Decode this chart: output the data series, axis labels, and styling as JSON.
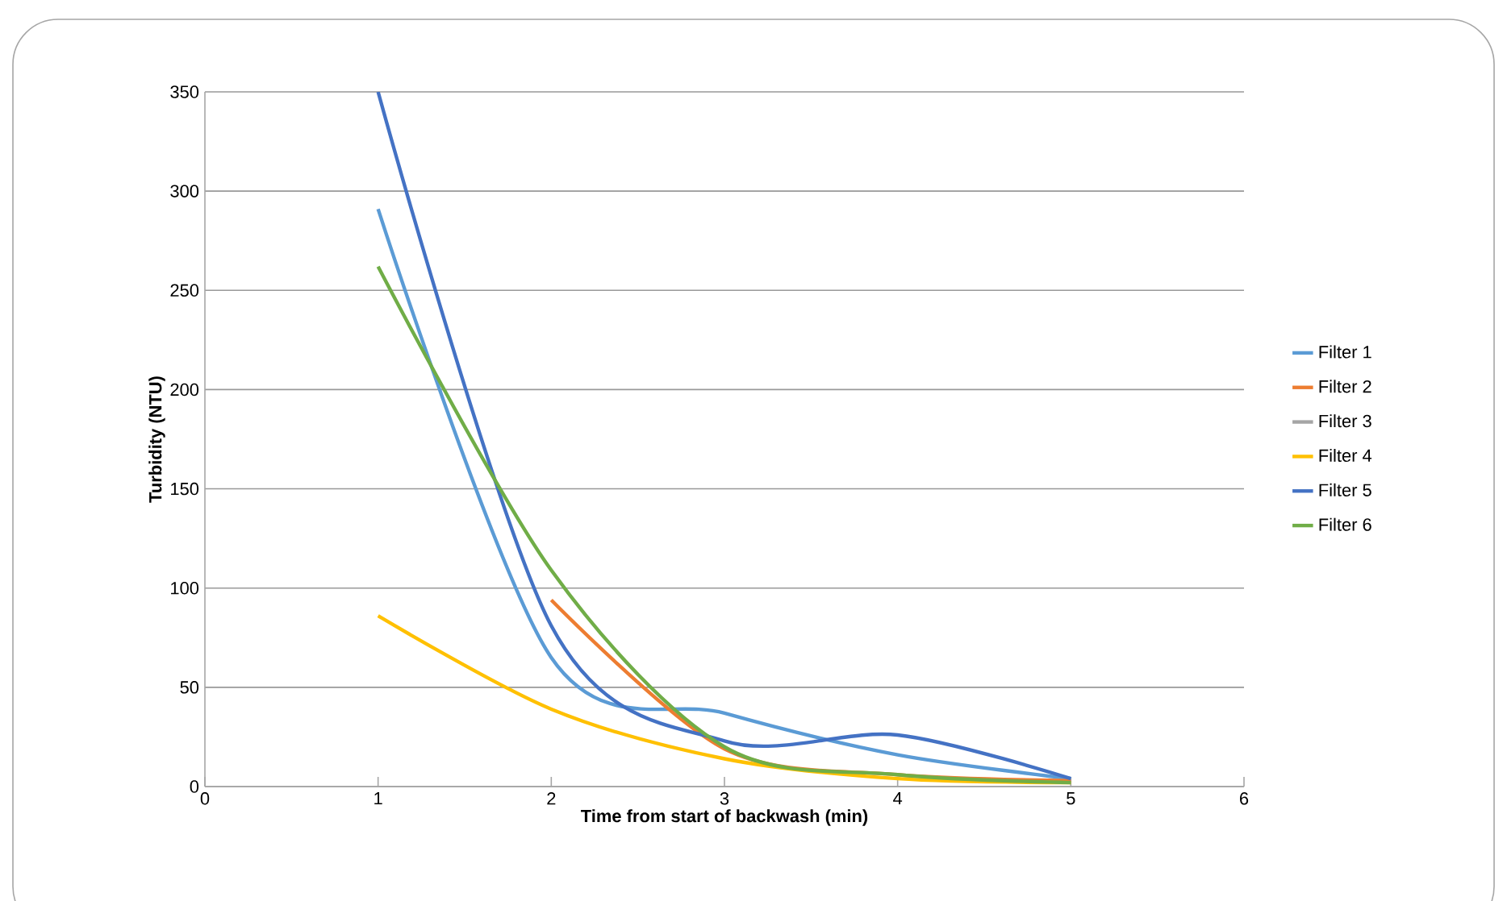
{
  "chart_data": {
    "type": "line",
    "xlabel": "Time from start of backwash (min)",
    "ylabel": "Turbidity (NTU)",
    "x": [
      1,
      2,
      3,
      4,
      5
    ],
    "series": [
      {
        "name": "Filter 1",
        "color": "#5b9bd5",
        "values": [
          291,
          65,
          37,
          16,
          4
        ]
      },
      {
        "name": "Filter 2",
        "color": "#ed7d31",
        "values": [
          null,
          94,
          19,
          6,
          3
        ]
      },
      {
        "name": "Filter 3",
        "color": "#a5a5a5",
        "values": [
          null,
          null,
          null,
          null,
          null
        ]
      },
      {
        "name": "Filter 4",
        "color": "#ffc000",
        "values": [
          86,
          39,
          14,
          4,
          2
        ]
      },
      {
        "name": "Filter 5",
        "color": "#4472c4",
        "values": [
          350,
          81,
          23,
          26,
          4
        ]
      },
      {
        "name": "Filter 6",
        "color": "#70ad47",
        "values": [
          262,
          109,
          20,
          6,
          2
        ]
      }
    ],
    "xlim": [
      0,
      6
    ],
    "xticks": [
      0,
      1,
      2,
      3,
      4,
      5,
      6
    ],
    "ylim": [
      0,
      350
    ],
    "yticks": [
      0,
      50,
      100,
      150,
      200,
      250,
      300,
      350
    ],
    "grid": "y",
    "legend": "right",
    "marker": "none",
    "line_style": "solid"
  }
}
